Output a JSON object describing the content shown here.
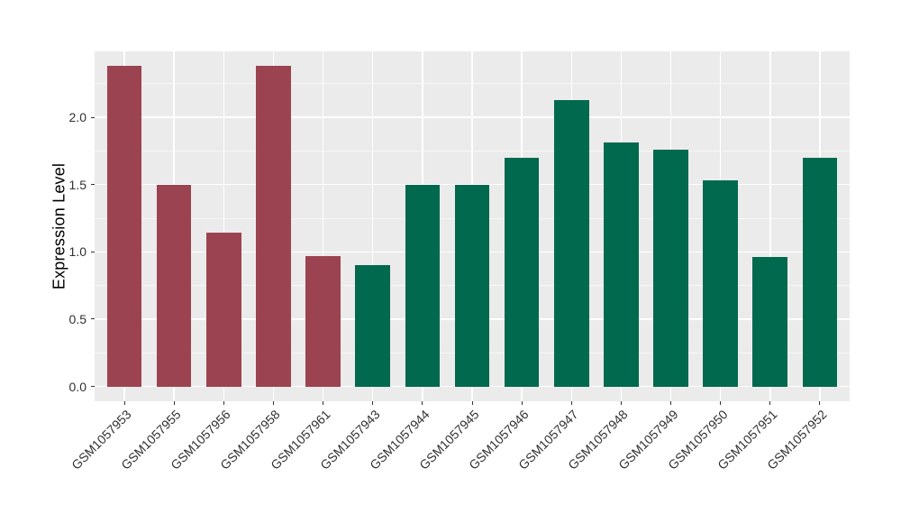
{
  "chart_data": {
    "type": "bar",
    "title": "",
    "xlabel": "",
    "ylabel": "Expression Level",
    "categories": [
      "GSM1057953",
      "GSM1057955",
      "GSM1057956",
      "GSM1057958",
      "GSM1057961",
      "GSM1057943",
      "GSM1057944",
      "GSM1057945",
      "GSM1057946",
      "GSM1057947",
      "GSM1057948",
      "GSM1057949",
      "GSM1057950",
      "GSM1057951",
      "GSM1057952"
    ],
    "values": [
      2.38,
      1.5,
      1.14,
      2.38,
      0.97,
      0.9,
      1.5,
      1.5,
      1.7,
      2.13,
      1.81,
      1.76,
      1.53,
      0.96,
      1.7
    ],
    "colors": [
      "#9C4351",
      "#9C4351",
      "#9C4351",
      "#9C4351",
      "#9C4351",
      "#01694E",
      "#01694E",
      "#01694E",
      "#01694E",
      "#01694E",
      "#01694E",
      "#01694E",
      "#01694E",
      "#01694E",
      "#01694E"
    ],
    "group_colors": {
      "red_group": "#9C4351",
      "green_group": "#01694E"
    },
    "yticks": [
      0.0,
      0.5,
      1.0,
      1.5,
      2.0
    ],
    "ytick_labels": [
      "0.0",
      "0.5",
      "1.0",
      "1.5",
      "2.0"
    ],
    "ylim": [
      -0.11,
      2.49
    ],
    "grid": "horizontal major+minor, vertical major per category, white on gray panel",
    "legend": "none",
    "panel_bg": "#EBEBEB",
    "grid_color": "#FFFFFF",
    "tick_color": "#333333",
    "axis_text_color": "#303030"
  }
}
